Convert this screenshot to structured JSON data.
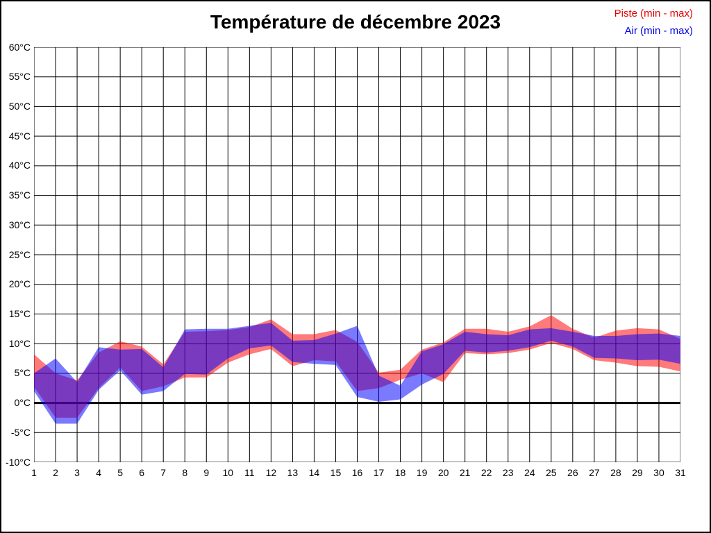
{
  "chart_data": {
    "type": "area",
    "subtype": "min-max-band",
    "title": "Température de décembre 2023",
    "xlabel": "",
    "ylabel": "",
    "ylim": [
      -10,
      60
    ],
    "ytick_step": 5,
    "grid": true,
    "legend_position": "top-right",
    "zero_line": {
      "value": 0,
      "color": "#000000",
      "width": 3
    },
    "y_tick_labels": [
      "60°C",
      "55°C",
      "50°C",
      "45°C",
      "40°C",
      "35°C",
      "30°C",
      "25°C",
      "20°C",
      "15°C",
      "10°C",
      "5°C",
      "0°C",
      "-5°C",
      "-10°C"
    ],
    "x_tick_labels": [
      "1",
      "2",
      "3",
      "4",
      "5",
      "6",
      "7",
      "8",
      "9",
      "10",
      "11",
      "12",
      "13",
      "14",
      "15",
      "16",
      "17",
      "18",
      "19",
      "20",
      "21",
      "22",
      "23",
      "24",
      "25",
      "26",
      "27",
      "28",
      "29",
      "30",
      "31"
    ],
    "days": [
      1,
      2,
      3,
      4,
      5,
      6,
      7,
      8,
      9,
      10,
      11,
      12,
      13,
      14,
      15,
      16,
      17,
      18,
      19,
      20,
      21,
      22,
      23,
      24,
      25,
      26,
      27,
      28,
      29,
      30,
      31
    ],
    "series": [
      {
        "name": "Piste (min - max)",
        "legend_color": "#e60000",
        "fill": "rgba(255,0,0,0.52)",
        "min": [
          2.7,
          -2.5,
          -2.5,
          2.5,
          6.0,
          2.0,
          2.8,
          4.3,
          4.3,
          6.8,
          8.2,
          9.1,
          6.2,
          7.2,
          7.0,
          2.0,
          2.5,
          3.9,
          5.0,
          3.5,
          8.4,
          8.2,
          8.4,
          9.0,
          10.1,
          9.1,
          7.2,
          6.8,
          6.2,
          6.1,
          5.3
        ],
        "max": [
          8.2,
          5.0,
          3.8,
          8.5,
          10.4,
          9.5,
          6.5,
          12.0,
          12.1,
          12.3,
          12.8,
          14.1,
          11.6,
          11.6,
          12.3,
          10.3,
          5.1,
          5.6,
          9.0,
          10.2,
          12.5,
          12.5,
          12.0,
          12.9,
          14.8,
          12.5,
          11.0,
          12.2,
          12.6,
          12.4,
          10.8
        ]
      },
      {
        "name": "Air (min - max)",
        "legend_color": "#0000e6",
        "fill": "rgba(0,0,255,0.52)",
        "min": [
          2.0,
          -3.5,
          -3.5,
          2.2,
          5.5,
          1.4,
          2.0,
          4.9,
          4.8,
          7.5,
          9.2,
          9.7,
          6.9,
          6.6,
          6.4,
          1.0,
          0.2,
          0.6,
          3.1,
          4.9,
          8.8,
          8.5,
          8.8,
          9.4,
          10.5,
          9.5,
          7.6,
          7.5,
          7.2,
          7.3,
          6.6
        ],
        "max": [
          5.0,
          7.5,
          3.5,
          9.4,
          9.0,
          9.1,
          6.0,
          12.4,
          12.5,
          12.5,
          13.0,
          13.5,
          10.5,
          10.6,
          11.7,
          13.0,
          4.6,
          2.9,
          8.7,
          9.9,
          12.0,
          11.6,
          11.4,
          12.4,
          12.6,
          12.0,
          11.3,
          11.3,
          11.6,
          11.7,
          11.3
        ]
      }
    ]
  }
}
